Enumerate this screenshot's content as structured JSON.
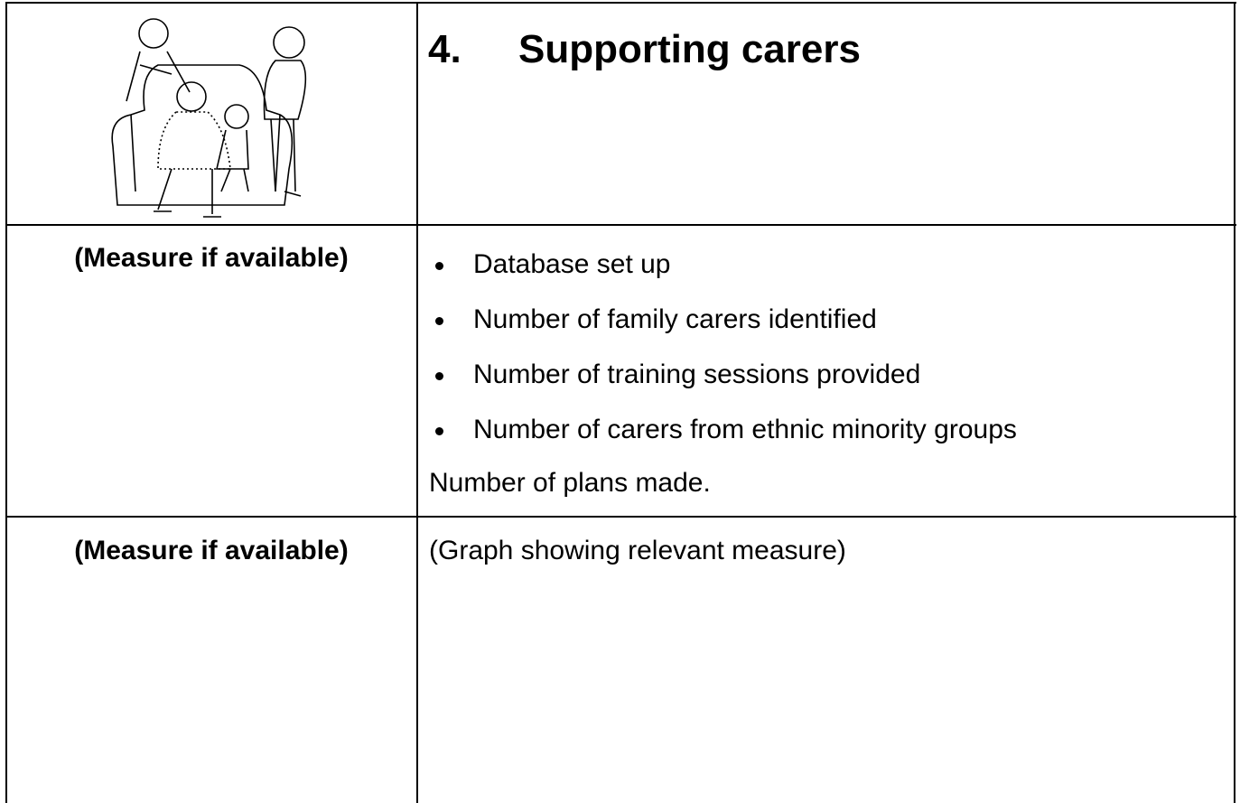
{
  "header": {
    "number": "4.",
    "title": "Supporting carers"
  },
  "rows": [
    {
      "label": "(Measure if available)",
      "items": [
        "Database set up",
        "Number of family carers identified",
        "Number of training sessions provided",
        "Number of carers from ethnic minority groups"
      ],
      "note": "Number of plans made."
    },
    {
      "label": "(Measure if available)",
      "content": "(Graph showing relevant measure)"
    }
  ]
}
